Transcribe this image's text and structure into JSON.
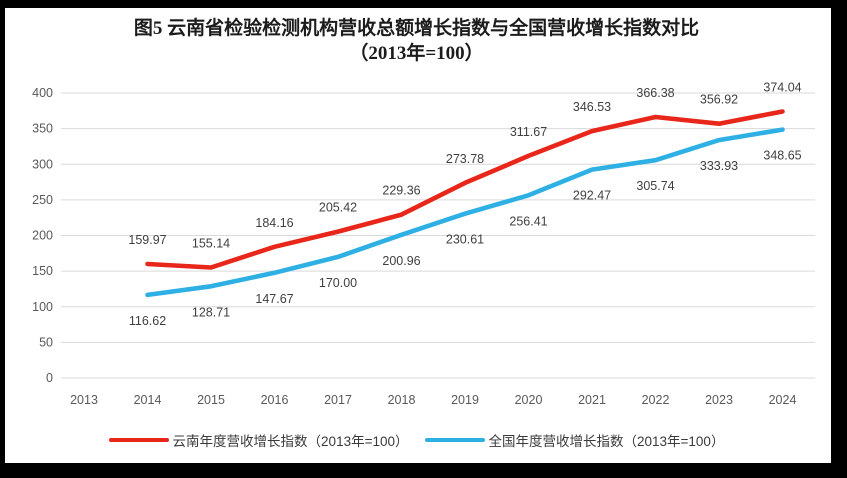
{
  "chart_data": {
    "type": "line",
    "title": "图5  云南省检验检测机构营收总额增长指数与全国营收增长指数对比",
    "subtitle": "（2013年=100）",
    "categories": [
      "2013",
      "2014",
      "2015",
      "2016",
      "2017",
      "2018",
      "2019",
      "2020",
      "2021",
      "2022",
      "2023",
      "2024"
    ],
    "series": [
      {
        "name": "云南年度营收增长指数（2013年=100）",
        "color": "#e8261a",
        "label_position": "above",
        "values": [
          null,
          159.97,
          155.14,
          184.16,
          205.42,
          229.36,
          273.78,
          311.67,
          346.53,
          366.38,
          356.92,
          374.04
        ]
      },
      {
        "name": "全国年度营收增长指数（2013年=100）",
        "color": "#2eb0e4",
        "label_position": "below",
        "values": [
          null,
          116.62,
          128.71,
          147.67,
          170.0,
          200.96,
          230.61,
          256.41,
          292.47,
          305.74,
          333.93,
          348.65
        ]
      }
    ],
    "xlabel": "",
    "ylabel": "",
    "ylim": [
      0,
      400
    ],
    "ytick_step": 50,
    "grid": "horizontal",
    "legend_position": "bottom",
    "data_labels": "every point, 2 decimals",
    "colors": {
      "gridline": "#d9d9d9",
      "axis_text": "#595959",
      "data_label_text": "#3f3f3f",
      "title_text": "#1c1c1c",
      "frame": "#000000",
      "plot_background": "#ffffff"
    }
  }
}
